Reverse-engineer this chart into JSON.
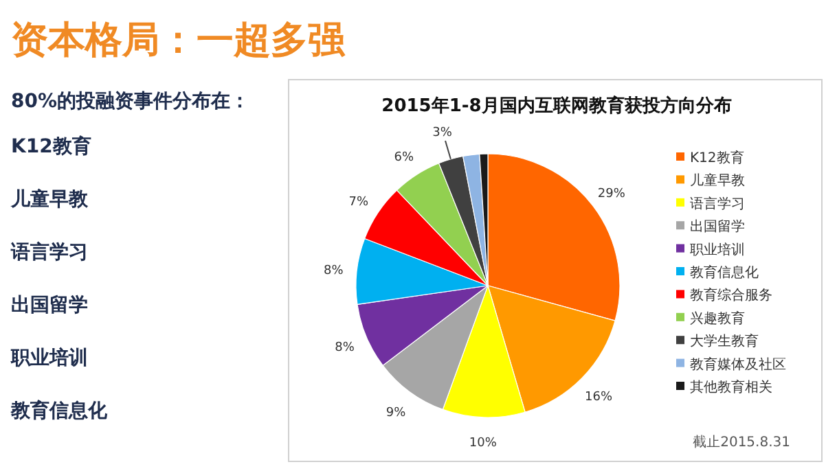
{
  "chart_data": {
    "type": "pie",
    "title": "2015年1-8月国内互联网教育获投方向分布",
    "categories": [
      "K12教育",
      "儿童早教",
      "语言学习",
      "出国留学",
      "职业培训",
      "教育信息化",
      "教育综合服务",
      "兴趣教育",
      "大学生教育",
      "教育媒体及社区",
      "其他教育相关"
    ],
    "values": [
      29,
      16,
      10,
      9,
      8,
      8,
      7,
      6,
      3,
      2,
      1
    ],
    "value_labels": [
      "29%",
      "16%",
      "10%",
      "9%",
      "8%",
      "8%",
      "7%",
      "6%",
      "3%",
      null,
      null
    ],
    "colors": [
      "#ff6600",
      "#ff9900",
      "#ffff00",
      "#a6a6a6",
      "#7030a0",
      "#00b0f0",
      "#ff0000",
      "#92d050",
      "#404040",
      "#8eb4e3",
      "#1a1a1a"
    ],
    "legend": "right",
    "annotations": [
      "资本格局：一超多强",
      "80%的投融资事件分布在：",
      "K12教育",
      "儿童早教",
      "语言学习",
      "出国留学",
      "职业培训",
      "教育信息化",
      "截止2015.8.31"
    ]
  }
}
